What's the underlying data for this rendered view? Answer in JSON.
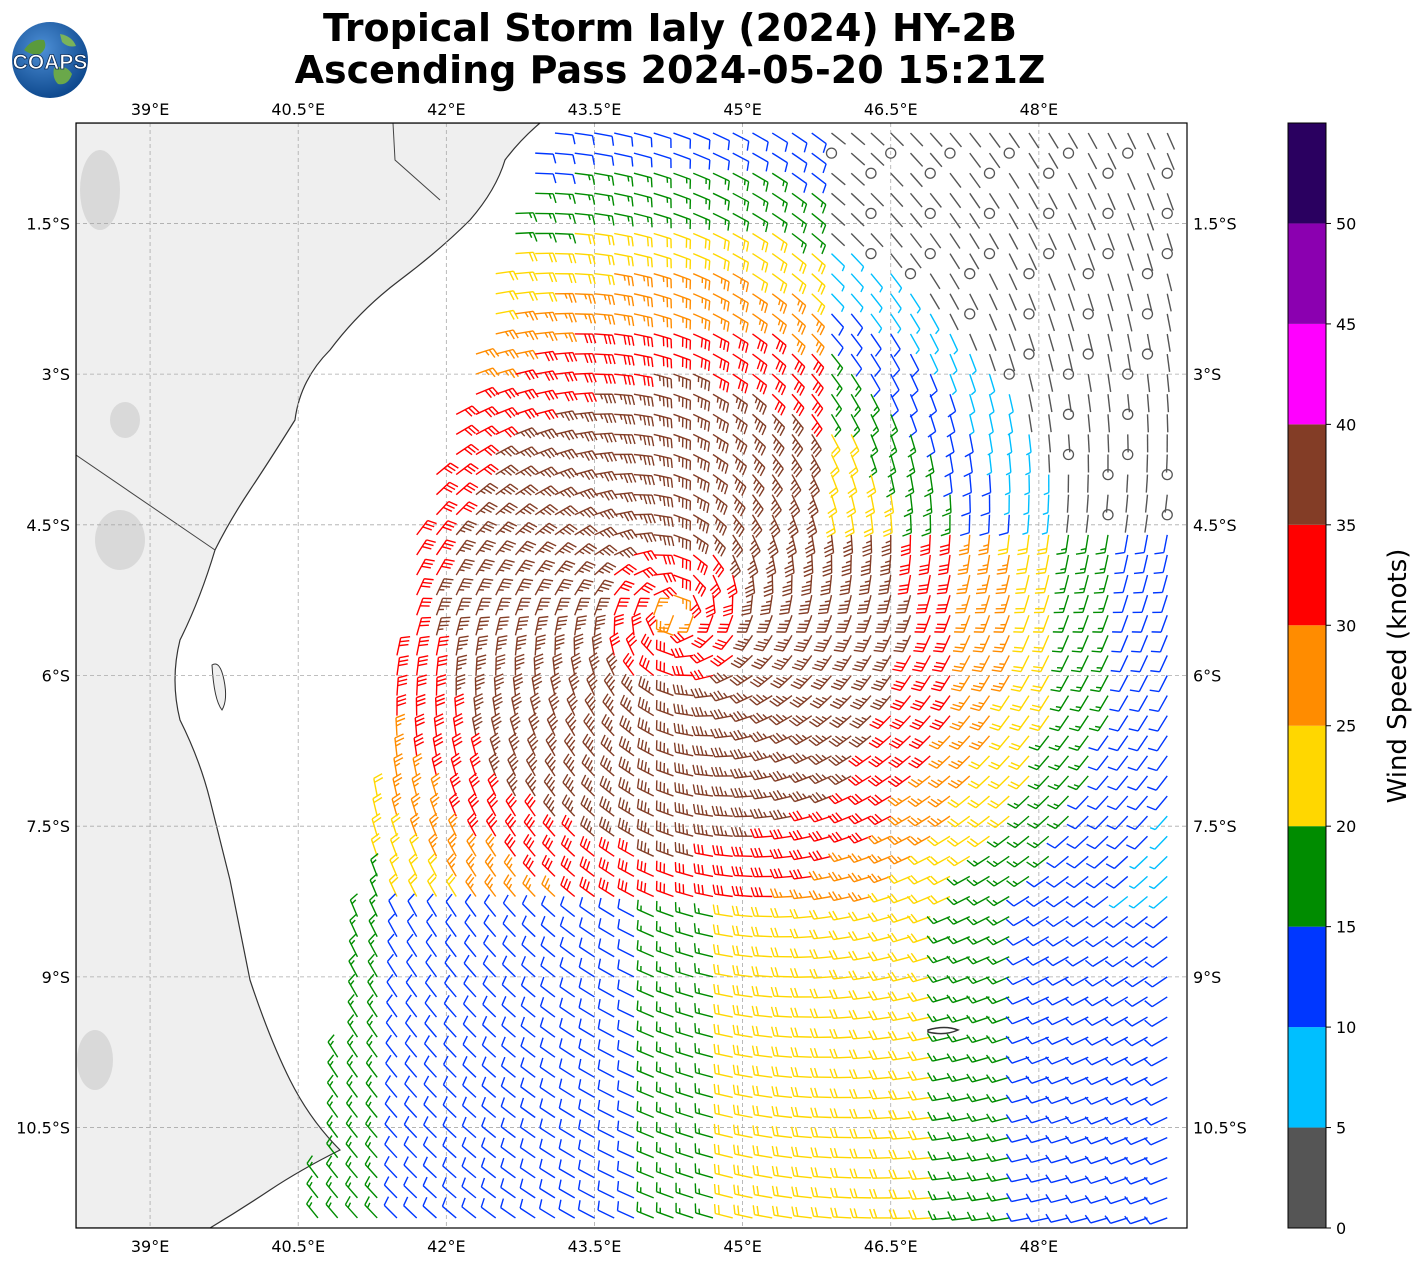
{
  "title": {
    "line1": "Tropical Storm Ialy (2024) HY-2B",
    "line2": "Ascending Pass 2024-05-20 15:21Z"
  },
  "logo": {
    "text": "COAPS",
    "icon": "globe-logo-icon"
  },
  "map": {
    "lon_range": [
      38.25,
      49.5
    ],
    "lat_range": [
      -11.5,
      -0.5
    ],
    "lon_ticks": [
      "39°E",
      "40.5°E",
      "42°E",
      "43.5°E",
      "45°E",
      "46.5°E",
      "48°E"
    ],
    "lat_ticks": [
      "1.5°S",
      "3°S",
      "4.5°S",
      "6°S",
      "7.5°S",
      "9°S",
      "10.5°S"
    ],
    "land_color": "#eeeeee",
    "ocean_color": "#ffffff",
    "storm_center": {
      "lon": 44.3,
      "lat": -5.4
    }
  },
  "colorbar": {
    "label": "Wind Speed (knots)",
    "ticks": [
      "0",
      "5",
      "10",
      "15",
      "20",
      "25",
      "30",
      "35",
      "40",
      "45",
      "50"
    ],
    "bins": [
      {
        "min": 0,
        "max": 5,
        "color": "#555555"
      },
      {
        "min": 5,
        "max": 10,
        "color": "#00bfff"
      },
      {
        "min": 10,
        "max": 15,
        "color": "#0037ff"
      },
      {
        "min": 15,
        "max": 20,
        "color": "#008c00"
      },
      {
        "min": 20,
        "max": 25,
        "color": "#ffd700"
      },
      {
        "min": 25,
        "max": 30,
        "color": "#ff8c00"
      },
      {
        "min": 30,
        "max": 35,
        "color": "#ff0000"
      },
      {
        "min": 35,
        "max": 40,
        "color": "#833d26"
      },
      {
        "min": 40,
        "max": 45,
        "color": "#ff00ff"
      },
      {
        "min": 45,
        "max": 50,
        "color": "#8b00b0"
      },
      {
        "min": 50,
        "max": 55,
        "color": "#2a0060"
      }
    ]
  }
}
